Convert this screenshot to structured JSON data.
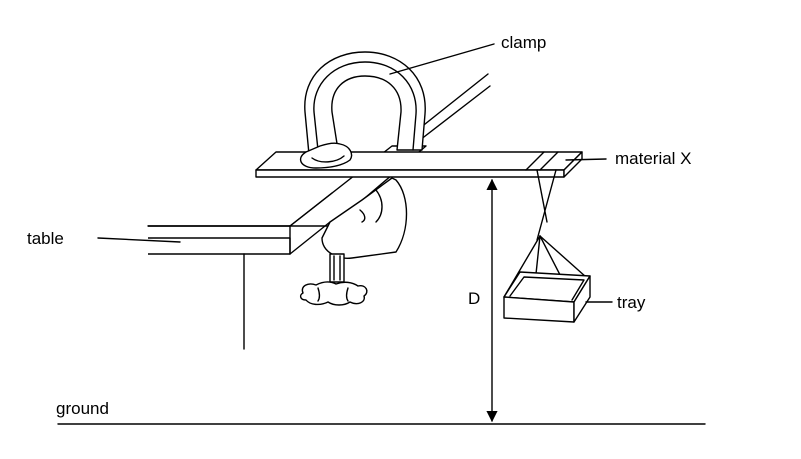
{
  "diagram": {
    "labels": {
      "clamp": "clamp",
      "material": "material X",
      "table": "table",
      "distance": "D",
      "tray": "tray",
      "ground": "ground"
    },
    "colors": {
      "ink": "#000000",
      "paper": "#ffffff"
    }
  }
}
